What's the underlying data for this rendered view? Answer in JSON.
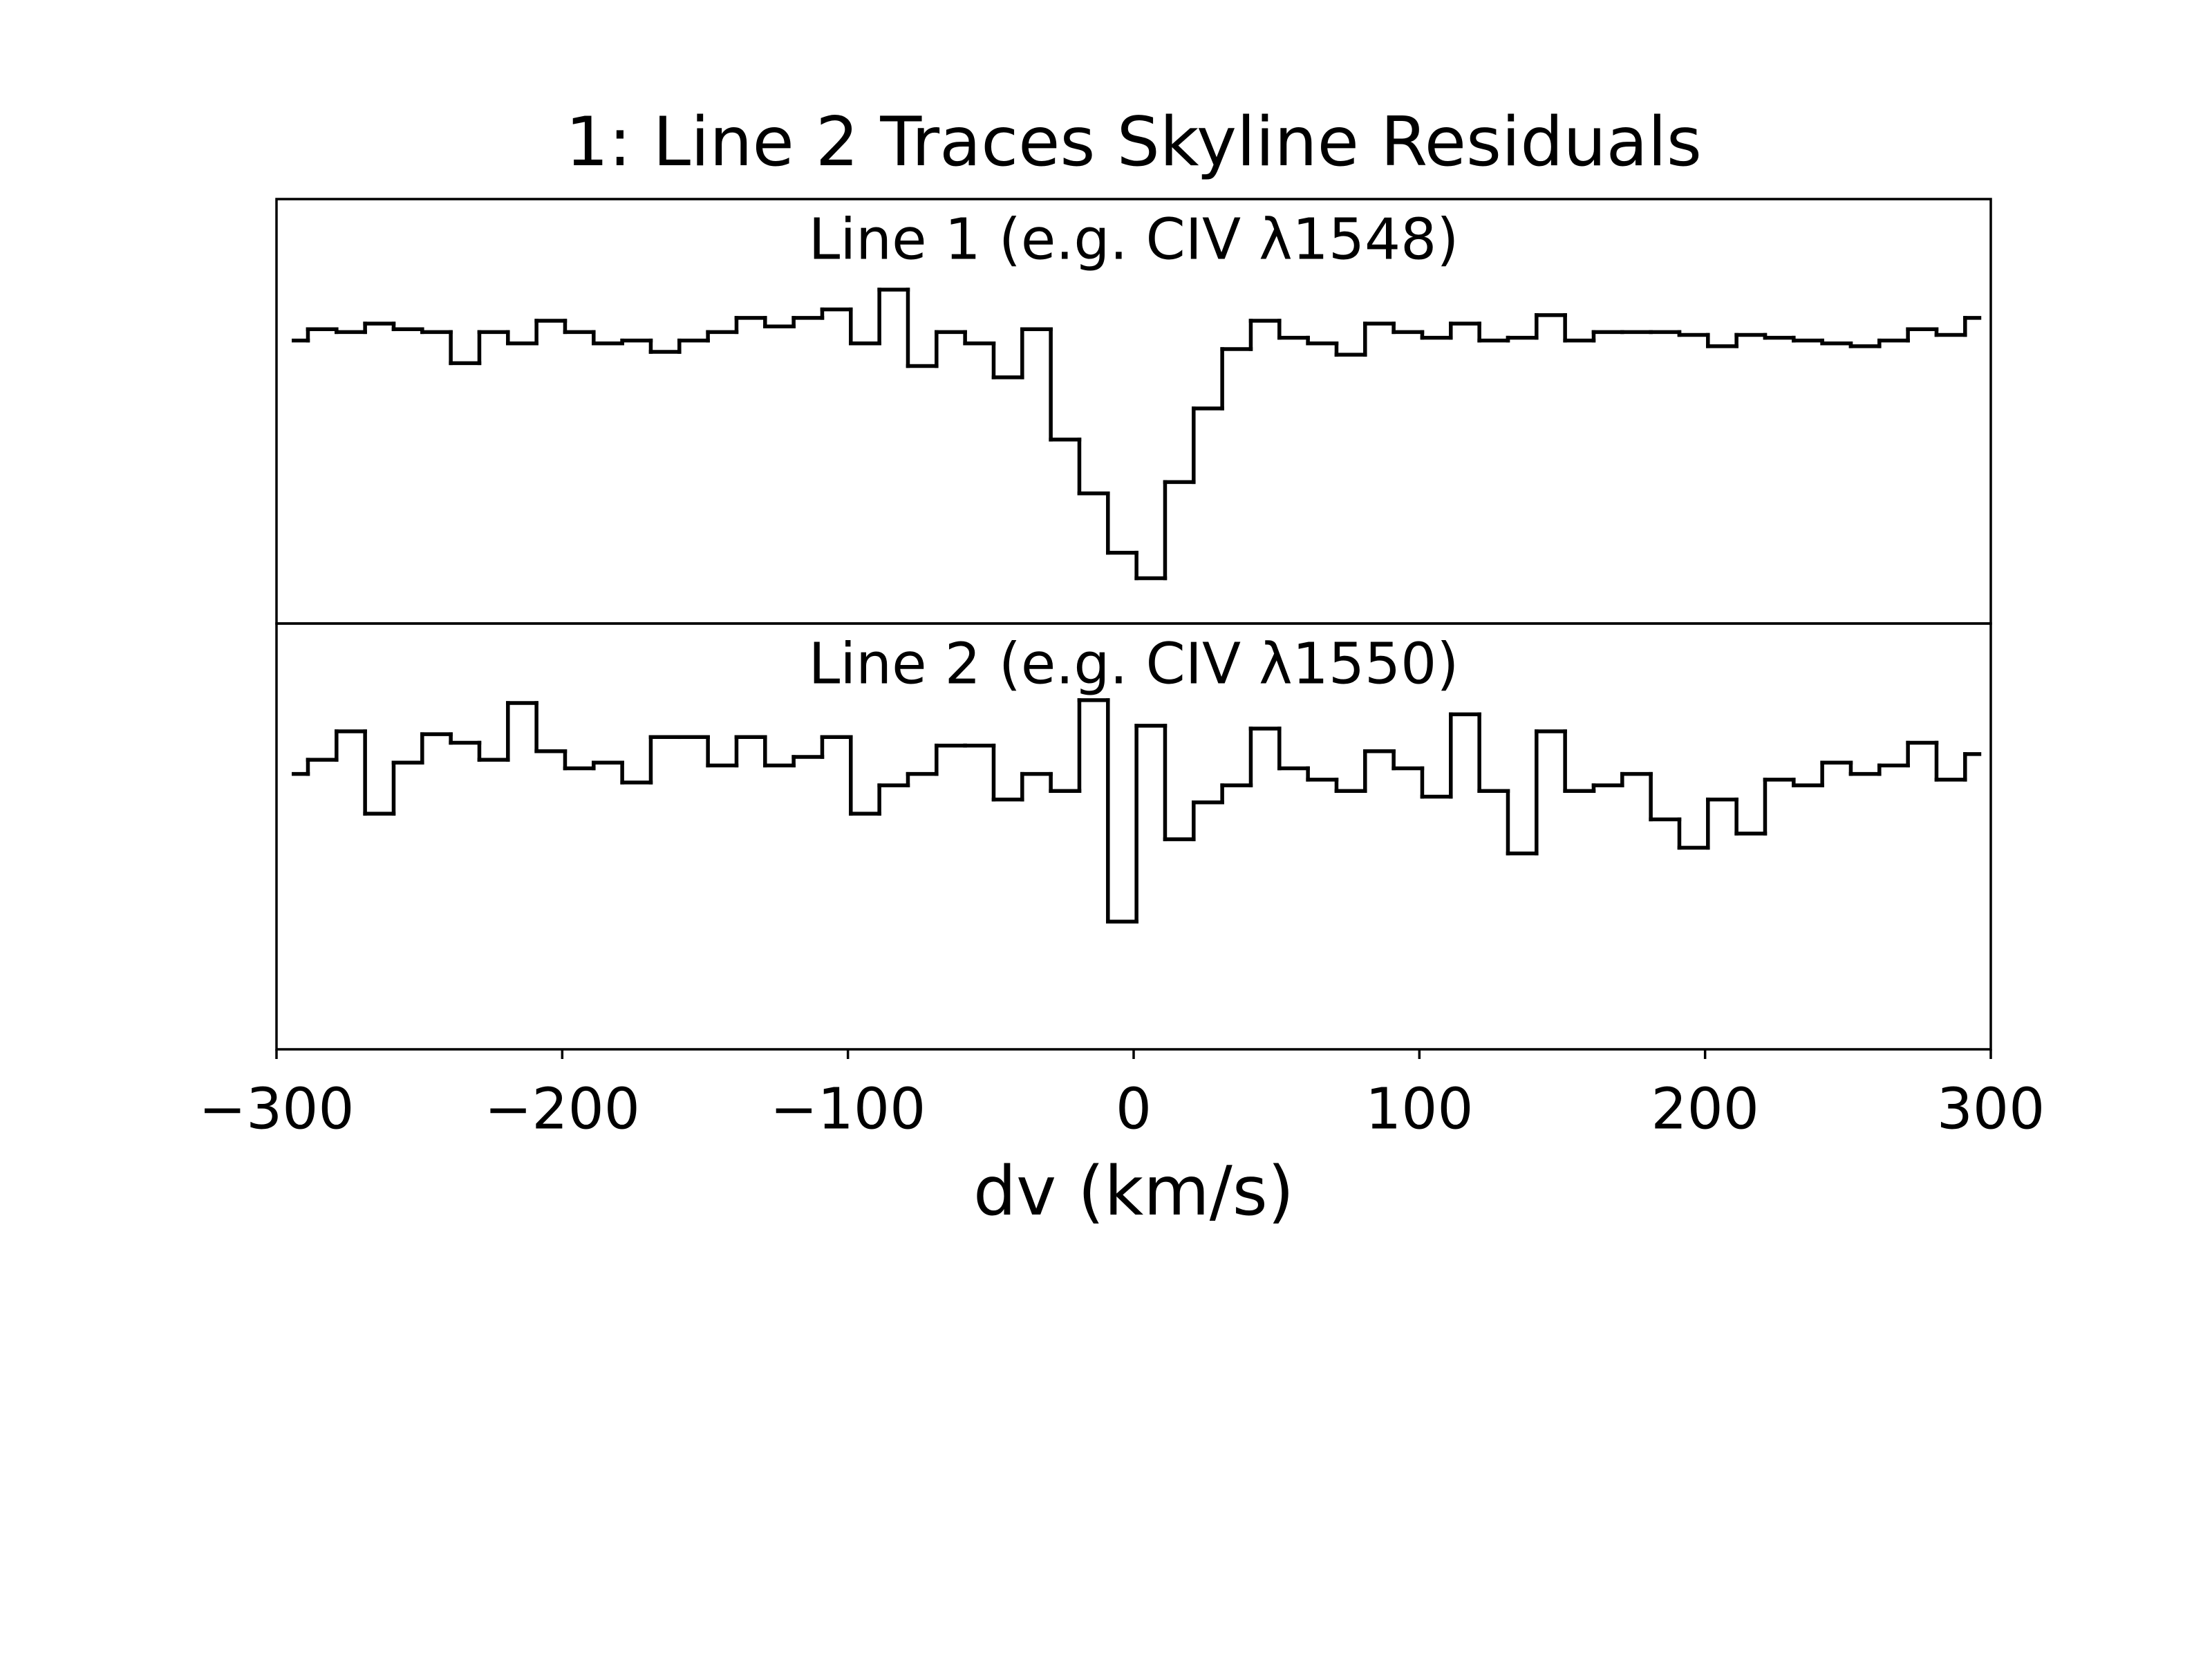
{
  "chart_data": [
    {
      "type": "step",
      "title": "1: Line 2 Traces Skyline Residuals",
      "label": "Line 1 (e.g. CIV λ1548)",
      "color": "#000000",
      "x": [
        -294,
        -284,
        -274,
        -264,
        -254,
        -244,
        -234,
        -224,
        -214,
        -204,
        -194,
        -184,
        -174,
        -164,
        -154,
        -144,
        -134,
        -124,
        -114,
        -104,
        -94,
        -84,
        -74,
        -64,
        -54,
        -44,
        -34,
        -24,
        -14,
        -4,
        6,
        16,
        26,
        36,
        46,
        56,
        66,
        76,
        86,
        96,
        106,
        116,
        126,
        136,
        146,
        156,
        166,
        176,
        186,
        196,
        206,
        216,
        226,
        236,
        246,
        256,
        266,
        276,
        286,
        296
      ],
      "values": [
        1.0,
        1.04,
        1.03,
        1.06,
        1.04,
        1.03,
        0.92,
        1.03,
        0.99,
        1.07,
        1.03,
        0.99,
        1.0,
        0.96,
        1.0,
        1.03,
        1.08,
        1.05,
        1.08,
        1.11,
        0.99,
        1.18,
        0.91,
        1.03,
        0.99,
        0.87,
        1.04,
        0.65,
        0.46,
        0.25,
        0.16,
        0.5,
        0.76,
        0.97,
        1.07,
        1.01,
        0.99,
        0.95,
        1.06,
        1.03,
        1.01,
        1.06,
        1.0,
        1.01,
        1.09,
        1.0,
        1.03,
        1.03,
        1.03,
        1.02,
        0.98,
        1.02,
        1.01,
        1.0,
        0.99,
        0.98,
        1.0,
        1.04,
        1.02,
        1.08
      ],
      "xlim": [
        -300,
        300
      ],
      "ylim": [
        0,
        1.5
      ]
    },
    {
      "type": "step",
      "label": "Line 2 (e.g. CIV λ1550)",
      "xlabel": "dv (km/s)",
      "color": "#000000",
      "x": [
        -294,
        -284,
        -274,
        -264,
        -254,
        -244,
        -234,
        -224,
        -214,
        -204,
        -194,
        -184,
        -174,
        -164,
        -154,
        -144,
        -134,
        -124,
        -114,
        -104,
        -94,
        -84,
        -74,
        -64,
        -54,
        -44,
        -34,
        -24,
        -14,
        -4,
        6,
        16,
        26,
        36,
        46,
        56,
        66,
        76,
        86,
        96,
        106,
        116,
        126,
        136,
        146,
        156,
        166,
        176,
        186,
        196,
        206,
        216,
        226,
        236,
        246,
        256,
        266,
        276,
        286,
        296
      ],
      "values": [
        0.97,
        1.02,
        1.12,
        0.83,
        1.01,
        1.11,
        1.08,
        1.02,
        1.22,
        1.05,
        0.99,
        1.01,
        0.94,
        1.1,
        1.1,
        1.0,
        1.1,
        1.0,
        1.03,
        1.1,
        0.83,
        0.93,
        0.97,
        1.07,
        1.07,
        0.88,
        0.97,
        0.91,
        1.23,
        0.45,
        1.14,
        0.74,
        0.87,
        0.93,
        1.13,
        0.99,
        0.95,
        0.91,
        1.05,
        0.99,
        0.89,
        1.18,
        0.91,
        0.69,
        1.12,
        0.91,
        0.93,
        0.97,
        0.81,
        0.71,
        0.88,
        0.76,
        0.95,
        0.93,
        1.01,
        0.97,
        1.0,
        1.08,
        0.95,
        1.04
      ],
      "xlim": [
        -300,
        300
      ],
      "ylim": [
        0,
        1.5
      ],
      "xticks": [
        {
          "value": -300,
          "label": "−300"
        },
        {
          "value": -200,
          "label": "−200"
        },
        {
          "value": -100,
          "label": "−100"
        },
        0,
        100,
        200,
        300
      ]
    }
  ]
}
